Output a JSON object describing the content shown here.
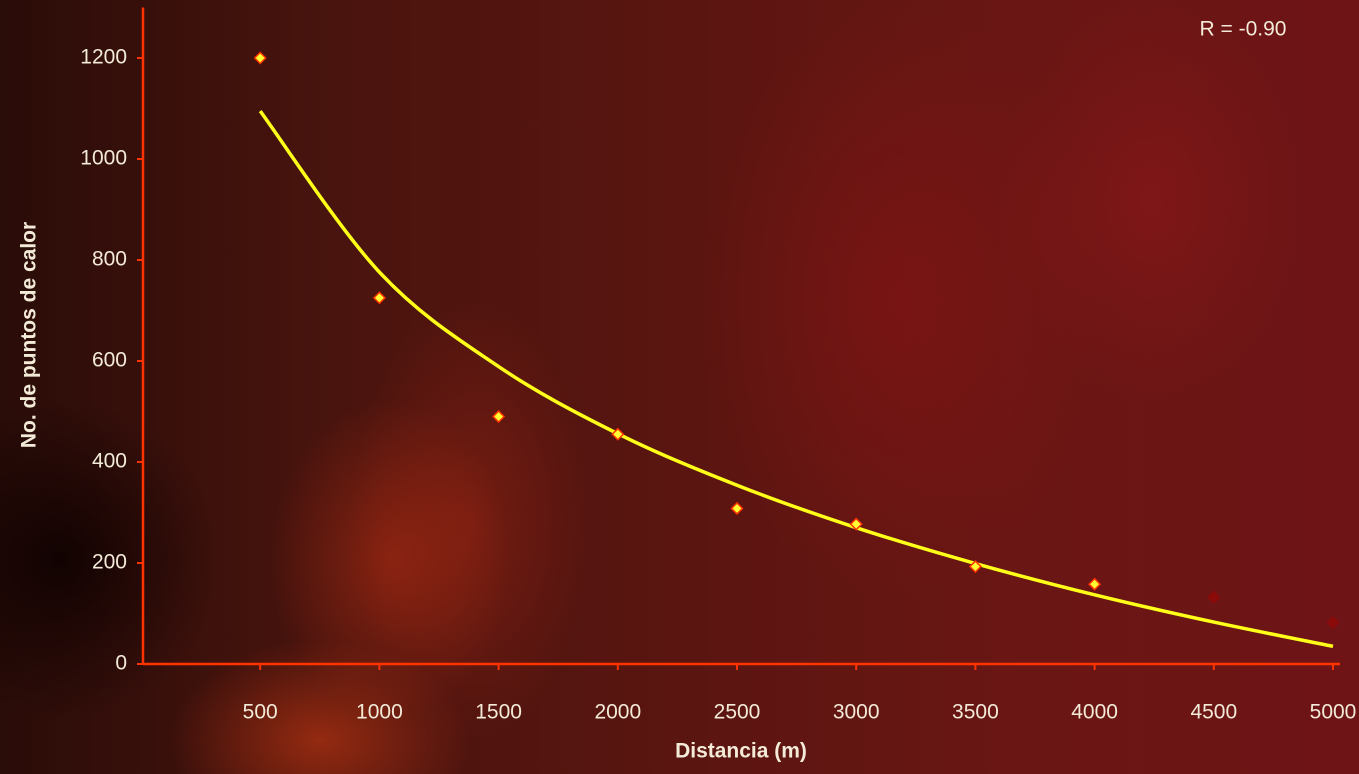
{
  "chart_data": {
    "type": "scatter",
    "xlabel": "Distancia (m)",
    "ylabel": "No. de puntos de calor",
    "annotation": "R = -0.90",
    "x": [
      500,
      1000,
      1500,
      2000,
      2500,
      3000,
      3500,
      4000,
      4500,
      5000
    ],
    "values": [
      1200,
      725,
      490,
      455,
      308,
      277,
      193,
      158,
      132,
      82
    ],
    "colors": [
      "#ffff33",
      "#ffff33",
      "#ffff33",
      "#ffff33",
      "#ffff33",
      "#ffff33",
      "#ffff33",
      "#ffff33",
      "#8b0a0a",
      "#8b0a0a"
    ],
    "edge_color": "#ff3300",
    "trendline": {
      "type": "line",
      "color": "#ffff1a",
      "x": [
        500,
        1000,
        1500,
        2000,
        2500,
        3000,
        3500,
        4000,
        4500,
        5000
      ],
      "values": [
        1095,
        776,
        589,
        456,
        354,
        270,
        199,
        137,
        83,
        35
      ]
    },
    "xlim": [
      0,
      5000
    ],
    "xticks": [
      500,
      1000,
      1500,
      2000,
      2500,
      3000,
      3500,
      4000,
      4500,
      5000
    ],
    "ylim": [
      0,
      1300
    ],
    "yticks": [
      0,
      200,
      400,
      600,
      800,
      1000,
      1200
    ],
    "axis_color": "#ff3300",
    "grid": false
  }
}
